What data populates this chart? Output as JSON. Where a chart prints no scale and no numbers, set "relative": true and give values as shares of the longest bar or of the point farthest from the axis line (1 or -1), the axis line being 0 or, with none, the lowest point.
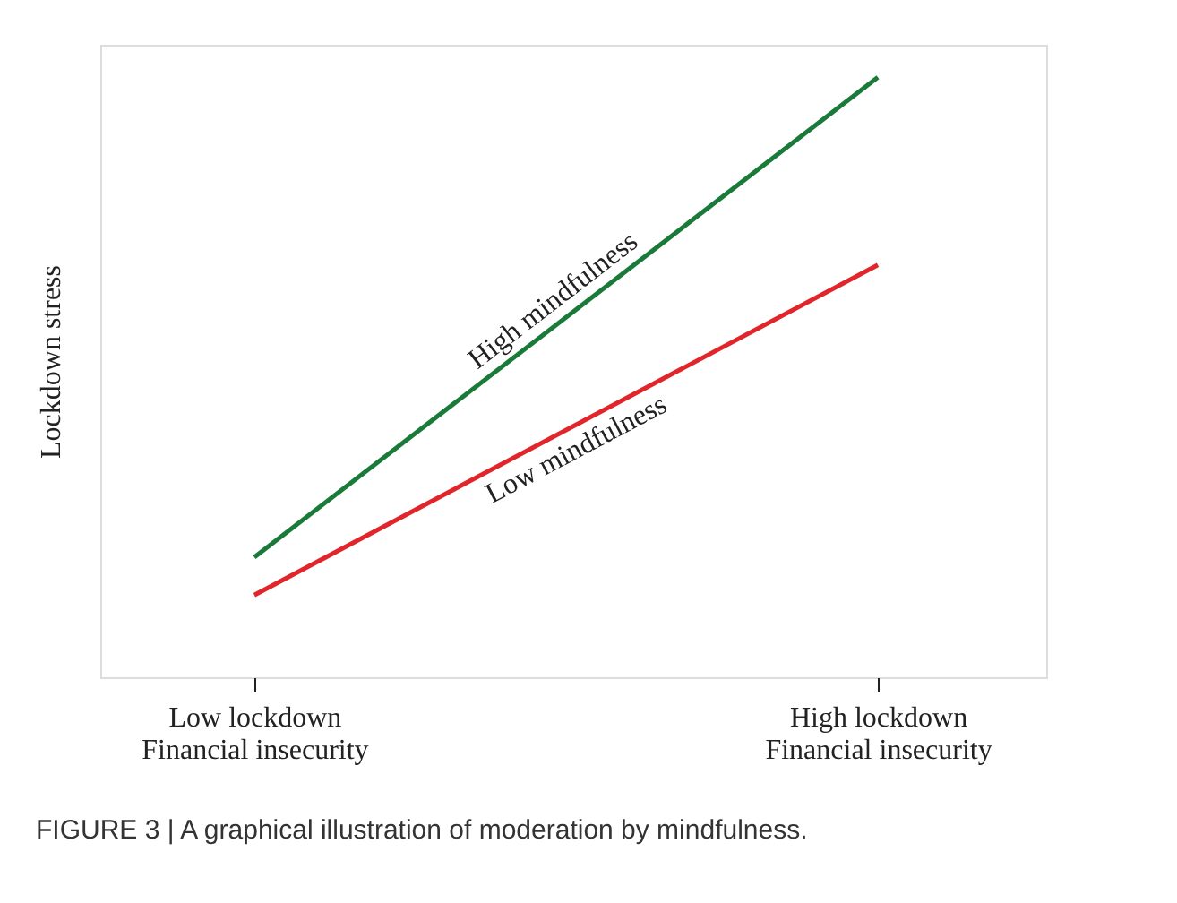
{
  "chart_data": {
    "type": "line",
    "ylabel": "Lockdown stress",
    "relative": true,
    "categories": [
      "Low lockdown\nFinancial insecurity",
      "High lockdown\nFinancial insecurity"
    ],
    "series": [
      {
        "name": "High mindfulness",
        "color": "#1a7a3a",
        "values": [
          0.2,
          1
        ]
      },
      {
        "name": "Low mindfulness",
        "color": "#e0262a",
        "values": [
          0.137,
          0.687
        ]
      }
    ],
    "annotations": [
      "FIGURE 3 | A graphical illustration of moderation by mindfulness."
    ]
  }
}
